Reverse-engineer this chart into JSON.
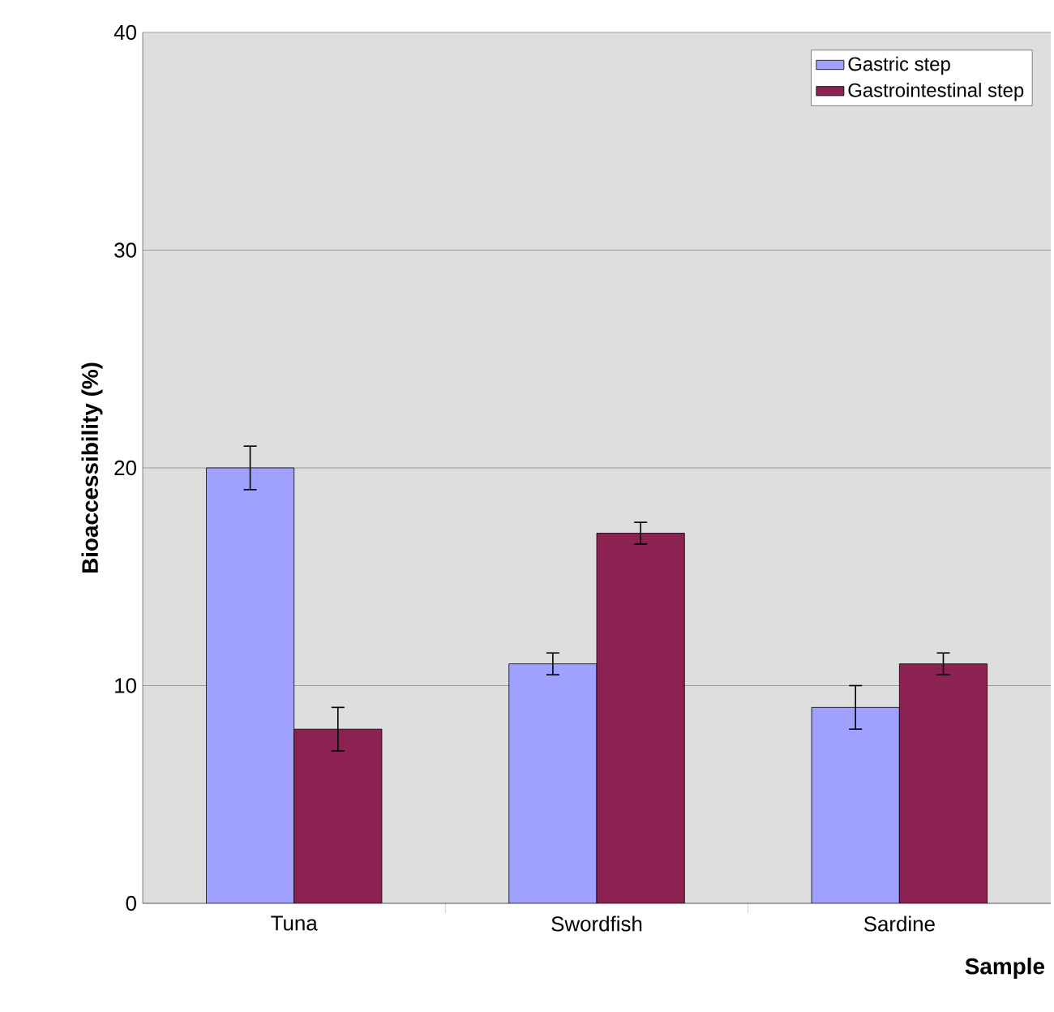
{
  "chart_data": {
    "type": "bar",
    "xlabel": "Sample",
    "ylabel": "Bioaccessibility (%)",
    "categories": [
      "Tuna",
      "Swordfish",
      "Sardine"
    ],
    "series": [
      {
        "name": "Gastric step",
        "color": "#a0a0ff",
        "values": [
          20,
          11,
          9
        ],
        "errors": [
          1,
          0.5,
          1
        ]
      },
      {
        "name": "Gastrointestinal step",
        "color": "#8b2252",
        "values": [
          8,
          17,
          11
        ],
        "errors": [
          1,
          0.5,
          0.5
        ]
      }
    ],
    "ylim": [
      0,
      40
    ],
    "yticks": [
      0,
      10,
      20,
      30,
      40
    ],
    "grid": "y",
    "legend": "top right"
  }
}
